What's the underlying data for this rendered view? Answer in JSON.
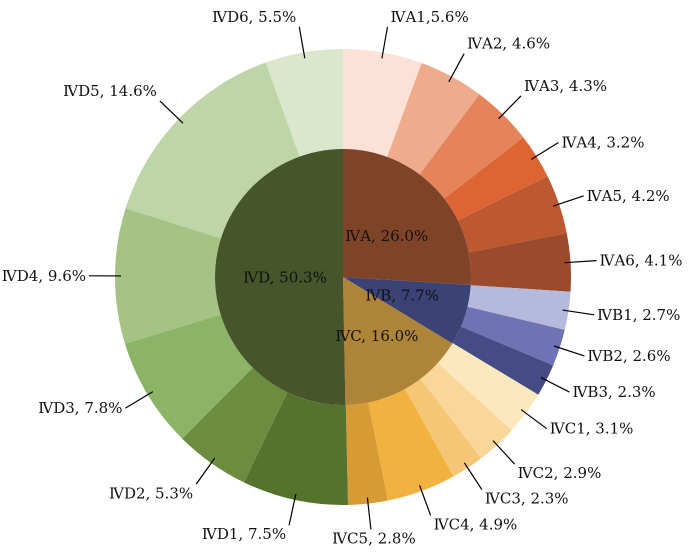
{
  "chart_data": {
    "type": "pie",
    "subtype": "nested-donut",
    "start": "top, clockwise",
    "inner": [
      {
        "name": "IVA",
        "label": "ⅣA, 26.0%",
        "value": 26.0,
        "color": "#7f4428"
      },
      {
        "name": "IVB",
        "label": "ⅣB, 7.7%",
        "value": 7.7,
        "color": "#3b4275"
      },
      {
        "name": "IVC",
        "label": "ⅣC, 16.0%",
        "value": 16.0,
        "color": "#ad8438"
      },
      {
        "name": "IVD",
        "label": "ⅣD, 50.3%",
        "value": 50.3,
        "color": "#47552b"
      }
    ],
    "outer": [
      {
        "name": "IVA1",
        "label": "ⅣA1,5.6%",
        "value": 5.6,
        "color": "#fbe1d6"
      },
      {
        "name": "IVA2",
        "label": "ⅣA2, 4.6%",
        "value": 4.6,
        "color": "#efac8c"
      },
      {
        "name": "IVA3",
        "label": "ⅣA3, 4.3%",
        "value": 4.3,
        "color": "#e5845a"
      },
      {
        "name": "IVA4",
        "label": "ⅣA4, 3.2%",
        "value": 3.2,
        "color": "#dd6433"
      },
      {
        "name": "IVA5",
        "label": "ⅣA5, 4.2%",
        "value": 4.2,
        "color": "#be5830"
      },
      {
        "name": "IVA6",
        "label": "ⅣA6, 4.1%",
        "value": 4.1,
        "color": "#9b4a2b"
      },
      {
        "name": "IVB1",
        "label": "ⅣB1, 2.7%",
        "value": 2.7,
        "color": "#b5b9db"
      },
      {
        "name": "IVB2",
        "label": "ⅣB2, 2.6%",
        "value": 2.6,
        "color": "#6d73b3"
      },
      {
        "name": "IVB3",
        "label": "ⅣB3, 2.3%",
        "value": 2.3,
        "color": "#454b85"
      },
      {
        "name": "IVC1",
        "label": "ⅣC1, 3.1%",
        "value": 3.1,
        "color": "#fde7bd"
      },
      {
        "name": "IVC2",
        "label": "ⅣC2, 2.9%",
        "value": 2.9,
        "color": "#f9d79a"
      },
      {
        "name": "IVC3",
        "label": "ⅣC3, 2.3%",
        "value": 2.3,
        "color": "#f5c675"
      },
      {
        "name": "IVC4",
        "label": "ⅣC4, 4.9%",
        "value": 4.9,
        "color": "#f1b23f"
      },
      {
        "name": "IVC5",
        "label": "ⅣC5, 2.8%",
        "value": 2.8,
        "color": "#d69b35"
      },
      {
        "name": "IVD1",
        "label": "ⅣD1, 7.5%",
        "value": 7.5,
        "color": "#56732e"
      },
      {
        "name": "IVD2",
        "label": "ⅣD2, 5.3%",
        "value": 5.3,
        "color": "#6c8c3f"
      },
      {
        "name": "IVD3",
        "label": "ⅣD3, 7.8%",
        "value": 7.8,
        "color": "#8cb467"
      },
      {
        "name": "IVD4",
        "label": "ⅣD4, 9.6%",
        "value": 9.6,
        "color": "#a6c386"
      },
      {
        "name": "IVD5",
        "label": "ⅣD5, 14.6%",
        "value": 14.6,
        "color": "#bed5a8"
      },
      {
        "name": "IVD6",
        "label": "ⅣD6, 5.5%",
        "value": 5.5,
        "color": "#dbe7cc"
      }
    ]
  }
}
